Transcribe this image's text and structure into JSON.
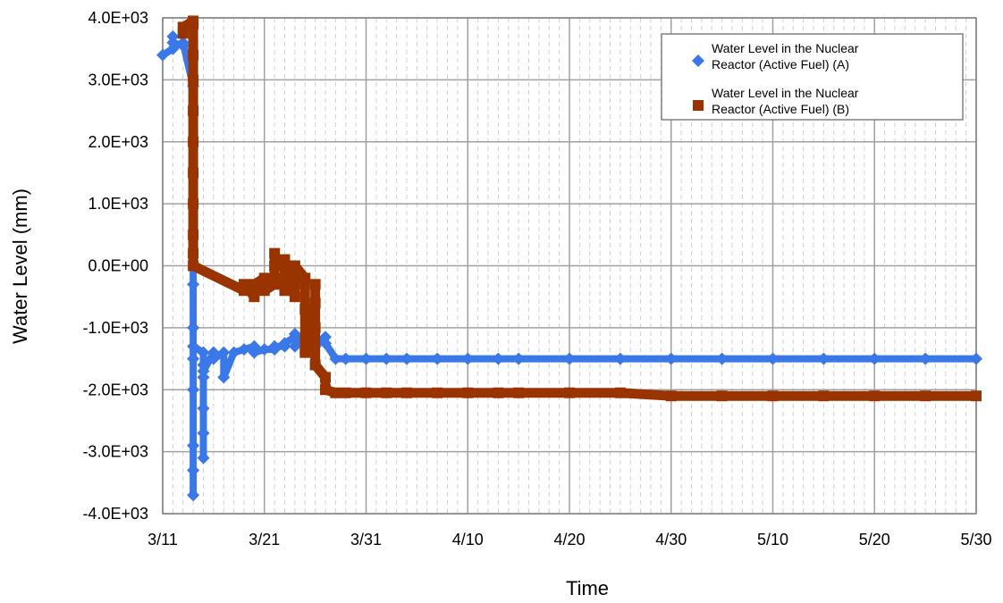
{
  "chart_data": {
    "type": "scatter",
    "xlabel": "Time",
    "ylabel": "Water Level (mm)",
    "xlim": [
      "3/11",
      "5/30"
    ],
    "ylim": [
      -4000,
      4000
    ],
    "x_tick_labels": [
      "3/11",
      "3/21",
      "3/31",
      "4/10",
      "4/20",
      "4/30",
      "5/10",
      "5/20",
      "5/30"
    ],
    "y_tick_labels": [
      "-4.0E+03",
      "-3.0E+03",
      "-2.0E+03",
      "-1.0E+03",
      "0.0E+00",
      "1.0E+03",
      "2.0E+03",
      "3.0E+03",
      "4.0E+03"
    ],
    "y_ticks": [
      -4000,
      -3000,
      -2000,
      -1000,
      0,
      1000,
      2000,
      3000,
      4000
    ],
    "grid": true,
    "minor_vertical_grid": "dashed, daily",
    "legend_position": "top-right",
    "series": [
      {
        "name": "Water Level in the Nuclear Reactor (Active Fuel) (A)",
        "color": "#3b78e7",
        "marker": "diamond",
        "x": [
          "3/11",
          "3/12",
          "3/12",
          "3/12",
          "3/13",
          "3/13",
          "3/14",
          "3/14",
          "3/14",
          "3/14",
          "3/14",
          "3/14",
          "3/14",
          "3/14",
          "3/14",
          "3/15",
          "3/15",
          "3/15",
          "3/15",
          "3/15",
          "3/15",
          "3/15",
          "3/15",
          "3/16",
          "3/16",
          "3/16",
          "3/17",
          "3/17",
          "3/18",
          "3/19",
          "3/20",
          "3/20",
          "3/21",
          "3/22",
          "3/22",
          "3/23",
          "3/23",
          "3/24",
          "3/24",
          "3/24",
          "3/25",
          "3/25",
          "3/26",
          "3/26",
          "3/27",
          "3/27",
          "3/28",
          "3/29",
          "3/31",
          "4/2",
          "4/4",
          "4/7",
          "4/10",
          "4/13",
          "4/15",
          "4/20",
          "4/25",
          "4/30",
          "5/5",
          "5/10",
          "5/15",
          "5/20",
          "5/25",
          "5/30"
        ],
        "y": [
          3400,
          3500,
          3700,
          3600,
          3550,
          3600,
          2900,
          -300,
          -1000,
          -1500,
          -2000,
          -2900,
          -3300,
          -3700,
          -1300,
          -1400,
          -1600,
          -1800,
          -2300,
          -2700,
          -3100,
          -1400,
          -1700,
          -1400,
          -1400,
          -1500,
          -1400,
          -1800,
          -1400,
          -1350,
          -1300,
          -1400,
          -1350,
          -1350,
          -1300,
          -1300,
          -1250,
          -1150,
          -1100,
          -1300,
          -1100,
          -1200,
          -1150,
          -1300,
          -1150,
          -1250,
          -1500,
          -1500,
          -1500,
          -1500,
          -1500,
          -1500,
          -1500,
          -1500,
          -1500,
          -1500,
          -1500,
          -1500,
          -1500,
          -1500,
          -1500,
          -1500,
          -1500,
          -1500
        ]
      },
      {
        "name": "Water Level in the Nuclear Reactor (Active Fuel) (B)",
        "color": "#993300",
        "marker": "square",
        "x": [
          "3/13",
          "3/13",
          "3/14",
          "3/14",
          "3/14",
          "3/14",
          "3/14",
          "3/14",
          "3/14",
          "3/14",
          "3/14",
          "3/14",
          "3/14",
          "3/19",
          "3/19",
          "3/20",
          "3/20",
          "3/21",
          "3/21",
          "3/22",
          "3/22",
          "3/22",
          "3/22",
          "3/23",
          "3/23",
          "3/23",
          "3/24",
          "3/24",
          "3/24",
          "3/25",
          "3/25",
          "3/25",
          "3/26",
          "3/26",
          "3/26",
          "3/26",
          "3/27",
          "3/27",
          "3/28",
          "3/29",
          "3/31",
          "4/2",
          "4/4",
          "4/7",
          "4/10",
          "4/13",
          "4/15",
          "4/20",
          "4/25",
          "4/30",
          "5/5",
          "5/10",
          "5/15",
          "5/20",
          "5/25",
          "5/30"
        ],
        "y": [
          3750,
          3850,
          3950,
          3900,
          3400,
          3000,
          2500,
          2000,
          1500,
          1000,
          500,
          200,
          0,
          -400,
          -300,
          -500,
          -300,
          -200,
          -400,
          -300,
          0,
          200,
          -200,
          -300,
          -400,
          100,
          -500,
          -300,
          0,
          -200,
          -700,
          -1400,
          -600,
          -300,
          -1000,
          -1600,
          -1800,
          -2000,
          -2050,
          -2050,
          -2050,
          -2050,
          -2050,
          -2050,
          -2050,
          -2050,
          -2050,
          -2050,
          -2050,
          -2100,
          -2100,
          -2100,
          -2100,
          -2100,
          -2100,
          -2100
        ]
      }
    ]
  }
}
